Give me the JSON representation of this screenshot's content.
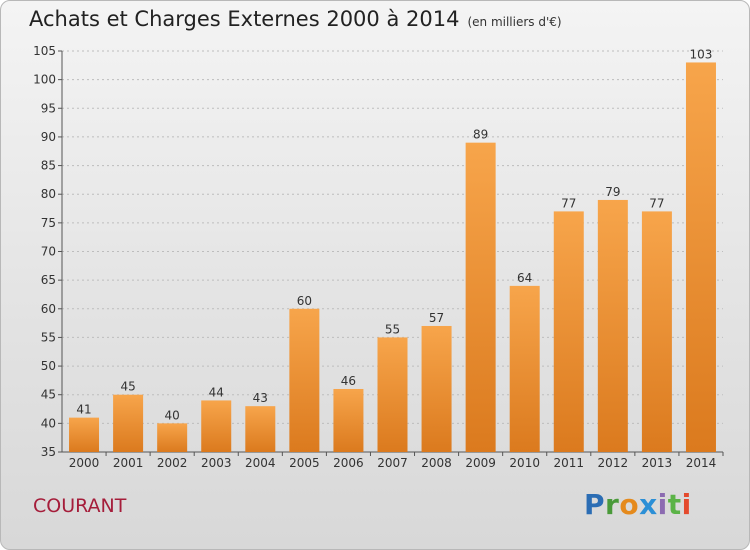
{
  "header": {
    "title": "Achats et Charges Externes 2000 à 2014",
    "unit_note": "(en milliers d'€)"
  },
  "footer": {
    "commune": "COURANT",
    "logo_text": "Proxiti"
  },
  "colors": {
    "bar_top": "#f7a54b",
    "bar_bottom": "#db7a1e",
    "grid": "#bdbdbd",
    "commune_text": "#a51d3a"
  },
  "chart_data": {
    "type": "bar",
    "categories": [
      "2000",
      "2001",
      "2002",
      "2003",
      "2004",
      "2005",
      "2006",
      "2007",
      "2008",
      "2009",
      "2010",
      "2011",
      "2012",
      "2013",
      "2014"
    ],
    "values": [
      41,
      45,
      40,
      44,
      43,
      60,
      46,
      55,
      57,
      89,
      64,
      77,
      79,
      77,
      103
    ],
    "data_labels": [
      "41",
      "45",
      "40",
      "44",
      "43",
      "60",
      "46",
      "55",
      "57",
      "89",
      "64",
      "77",
      "79",
      "77",
      "103"
    ],
    "ylim": [
      35,
      105
    ],
    "yticks": [
      35,
      40,
      45,
      50,
      55,
      60,
      65,
      70,
      75,
      80,
      85,
      90,
      95,
      100,
      105
    ],
    "title": "Achats et Charges Externes 2000 à 2014",
    "xlabel": "",
    "ylabel": "",
    "grid": "horizontal dashed"
  }
}
